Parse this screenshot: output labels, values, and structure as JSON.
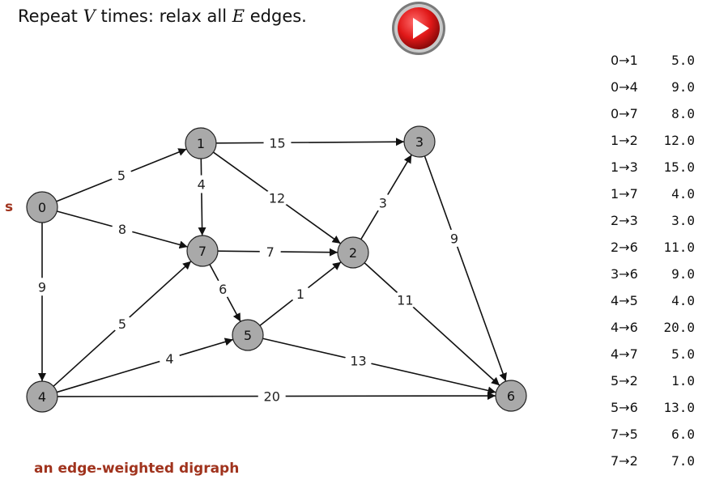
{
  "header": {
    "title_parts": [
      "Repeat ",
      "V",
      " times:  relax all ",
      "E",
      " edges."
    ],
    "play_button_icon": "play-icon"
  },
  "graph": {
    "source_marker": "s",
    "vertices": [
      "0",
      "1",
      "2",
      "3",
      "4",
      "5",
      "6",
      "7"
    ],
    "edges": [
      {
        "from": "0",
        "to": "1",
        "weight": "5"
      },
      {
        "from": "0",
        "to": "4",
        "weight": "9"
      },
      {
        "from": "0",
        "to": "7",
        "weight": "8"
      },
      {
        "from": "1",
        "to": "2",
        "weight": "12"
      },
      {
        "from": "1",
        "to": "3",
        "weight": "15"
      },
      {
        "from": "1",
        "to": "7",
        "weight": "4"
      },
      {
        "from": "2",
        "to": "3",
        "weight": "3"
      },
      {
        "from": "2",
        "to": "6",
        "weight": "11"
      },
      {
        "from": "3",
        "to": "6",
        "weight": "9"
      },
      {
        "from": "4",
        "to": "5",
        "weight": "4"
      },
      {
        "from": "4",
        "to": "6",
        "weight": "20"
      },
      {
        "from": "4",
        "to": "7",
        "weight": "5"
      },
      {
        "from": "5",
        "to": "2",
        "weight": "1"
      },
      {
        "from": "5",
        "to": "6",
        "weight": "13"
      },
      {
        "from": "7",
        "to": "5",
        "weight": "6"
      },
      {
        "from": "7",
        "to": "2",
        "weight": "7"
      }
    ]
  },
  "edge_list": [
    {
      "edge": "0→1",
      "weight": "5.0"
    },
    {
      "edge": "0→4",
      "weight": "9.0"
    },
    {
      "edge": "0→7",
      "weight": "8.0"
    },
    {
      "edge": "1→2",
      "weight": "12.0"
    },
    {
      "edge": "1→3",
      "weight": "15.0"
    },
    {
      "edge": "1→7",
      "weight": "4.0"
    },
    {
      "edge": "2→3",
      "weight": "3.0"
    },
    {
      "edge": "2→6",
      "weight": "11.0"
    },
    {
      "edge": "3→6",
      "weight": "9.0"
    },
    {
      "edge": "4→5",
      "weight": "4.0"
    },
    {
      "edge": "4→6",
      "weight": "20.0"
    },
    {
      "edge": "4→7",
      "weight": "5.0"
    },
    {
      "edge": "5→2",
      "weight": "1.0"
    },
    {
      "edge": "5→6",
      "weight": "13.0"
    },
    {
      "edge": "7→5",
      "weight": "6.0"
    },
    {
      "edge": "7→2",
      "weight": "7.0"
    }
  ],
  "caption": "an edge-weighted digraph",
  "colors": {
    "node_fill": "#a9a9a9",
    "caption": "#a0331d",
    "play_button": "#e01818"
  }
}
